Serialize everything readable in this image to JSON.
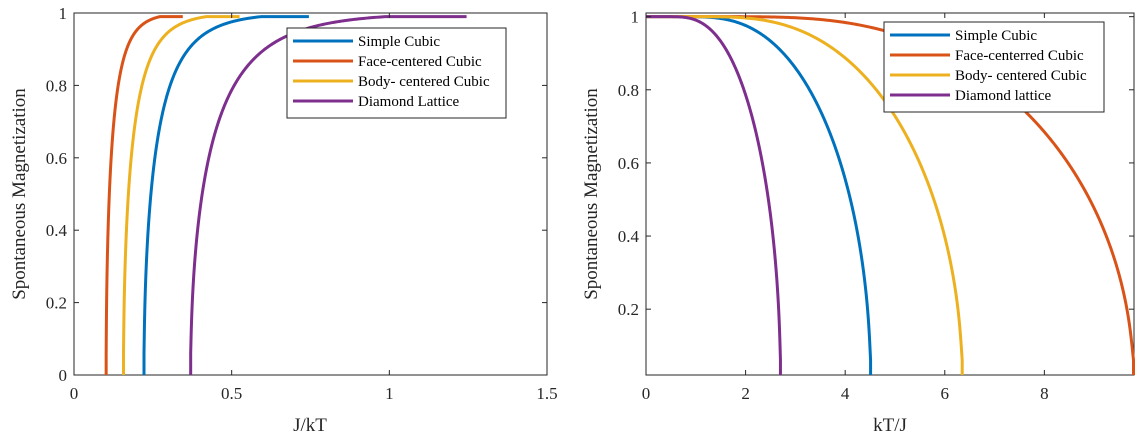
{
  "chart_data": [
    {
      "type": "line",
      "xlabel": "J/kT",
      "ylabel": "Spontaneous Magnetization",
      "xlim": [
        0,
        1.5
      ],
      "ylim": [
        0,
        1
      ],
      "xticks": [
        0,
        0.5,
        1,
        1.5
      ],
      "xtick_labels": [
        "0",
        "0.5",
        "1",
        "1.5"
      ],
      "yticks": [
        0,
        0.2,
        0.4,
        0.6,
        0.8,
        1
      ],
      "ytick_labels": [
        "0",
        "0.2",
        "0.4",
        "0.6",
        "0.8",
        "1"
      ],
      "grid": false,
      "legend_position": "top-right",
      "series": [
        {
          "name": "Simple Cubic",
          "color": "#0072BD",
          "crit": 0.222,
          "end": 0.745
        },
        {
          "name": "Face-centered Cubic",
          "color": "#D95319",
          "crit": 0.102,
          "end": 0.345
        },
        {
          "name": "Body- centered Cubic",
          "color": "#EDB120",
          "crit": 0.157,
          "end": 0.525
        },
        {
          "name": "Diamond Lattice",
          "color": "#7E2F8E",
          "crit": 0.37,
          "end": 1.245
        }
      ]
    },
    {
      "type": "line",
      "xlabel": "kT/J",
      "ylabel": "Spontaneous Magnetization",
      "xlim": [
        0,
        9.8
      ],
      "ylim": [
        0.02,
        1.01
      ],
      "xticks": [
        0,
        2,
        4,
        6,
        8
      ],
      "xtick_labels": [
        "0",
        "2",
        "4",
        "6",
        "8"
      ],
      "yticks": [
        0.2,
        0.4,
        0.6,
        0.8,
        1
      ],
      "ytick_labels": [
        "0.2",
        "0.4",
        "0.6",
        "0.8",
        "1"
      ],
      "grid": false,
      "legend_position": "top-right",
      "series": [
        {
          "name": "Simple Cubic",
          "color": "#0072BD",
          "tc": 4.51
        },
        {
          "name": "Face-centerred Cubic",
          "color": "#D95319",
          "tc": 9.79
        },
        {
          "name": "Body- centered Cubic",
          "color": "#EDB120",
          "tc": 6.35
        },
        {
          "name": "Diamond lattice",
          "color": "#7E2F8E",
          "tc": 2.7
        }
      ]
    }
  ]
}
